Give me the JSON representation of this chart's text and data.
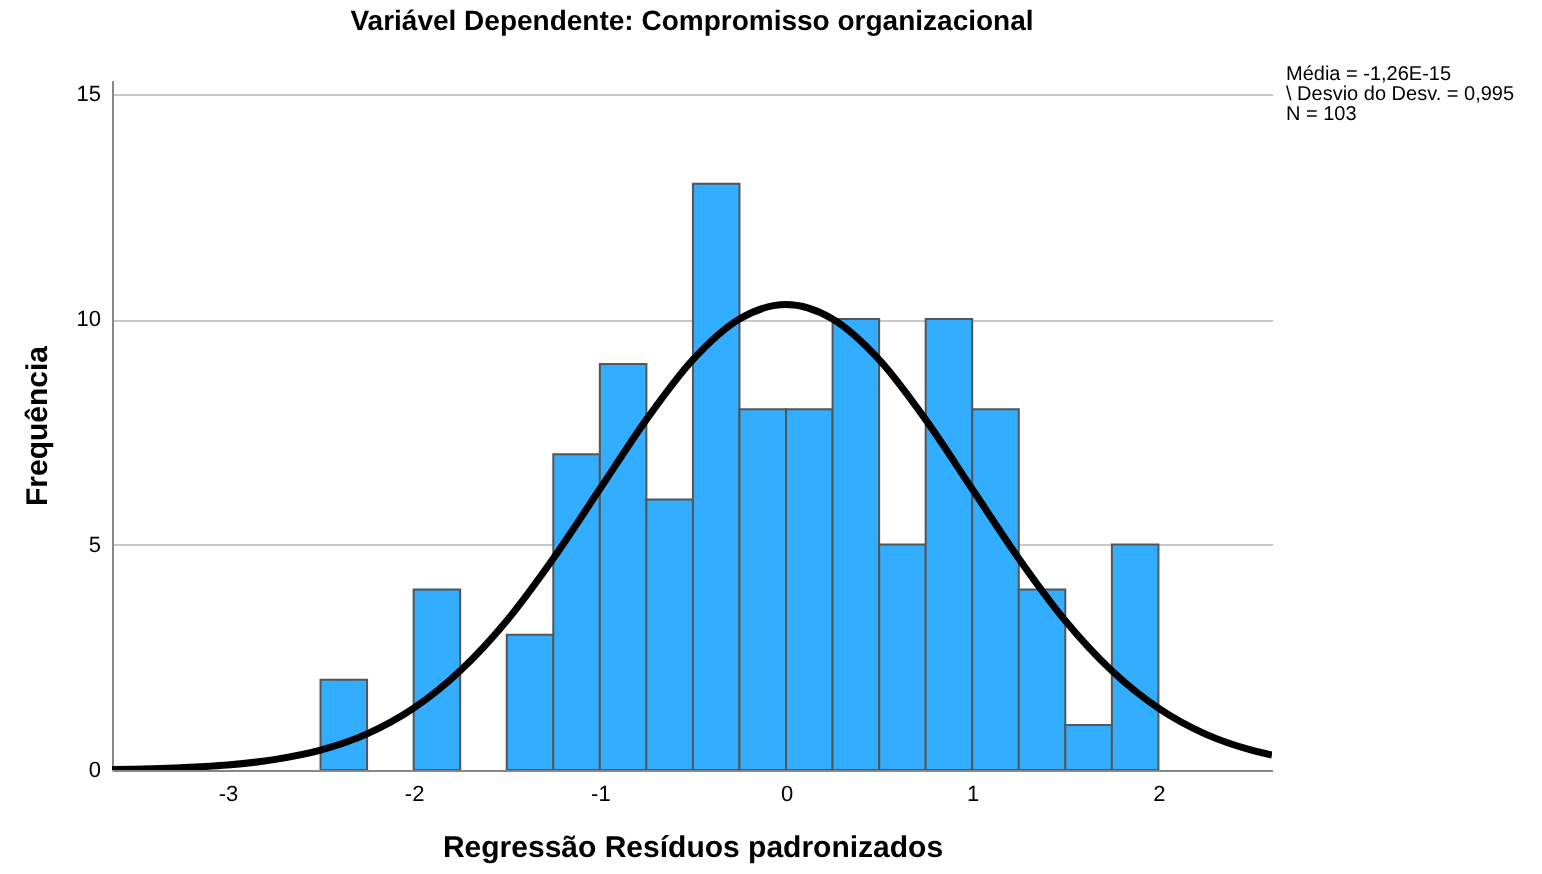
{
  "chart_data": {
    "type": "histogram",
    "title": "Variável Dependente: Compromisso organizacional",
    "xlabel": "Regressão Resíduos padronizados",
    "ylabel": "Frequência",
    "bins": [
      -2.5,
      -2.25,
      -2,
      -1.75,
      -1.5,
      -1.25,
      -1,
      -0.75,
      -0.5,
      -0.25,
      0,
      0.25,
      0.5,
      0.75,
      1,
      1.25,
      1.5,
      1.75,
      2
    ],
    "values": [
      2,
      0,
      4,
      0,
      3,
      7,
      9,
      6,
      13,
      8,
      8,
      10,
      5,
      10,
      8,
      4,
      1,
      5
    ],
    "color": "#33adff",
    "series": [
      {
        "type": "line",
        "color": "#000000",
        "x": [
          -3.62,
          -3.25,
          -3,
          -2.75,
          -2.5,
          -2.25,
          -2,
          -1.75,
          -1.5,
          -1.25,
          -1,
          -0.75,
          -0.5,
          -0.25,
          0,
          0.25,
          0.5,
          0.75,
          1,
          1.25,
          1.5,
          1.75,
          2,
          2.25,
          2.5,
          2.61
        ],
        "values": [
          0.01,
          0.05,
          0.11,
          0.23,
          0.44,
          0.8,
          1.37,
          2.2,
          3.31,
          4.69,
          6.23,
          7.77,
          9.1,
          10.0,
          10.32,
          10.0,
          9.1,
          7.77,
          6.23,
          4.69,
          3.31,
          2.2,
          1.37,
          0.8,
          0.44,
          0.33
        ]
      }
    ],
    "xlim": [
      -3.62,
      2.61
    ],
    "xticks": [
      -3,
      -2,
      -1,
      0,
      1,
      2
    ],
    "ylim": [
      0,
      15.3
    ],
    "yticks": [
      0,
      5,
      10,
      15
    ],
    "grid": "y",
    "annotations": [
      "Média = -1,26E-15",
      "\\ Desvio do Desv. = 0,995",
      "N = 103"
    ]
  }
}
